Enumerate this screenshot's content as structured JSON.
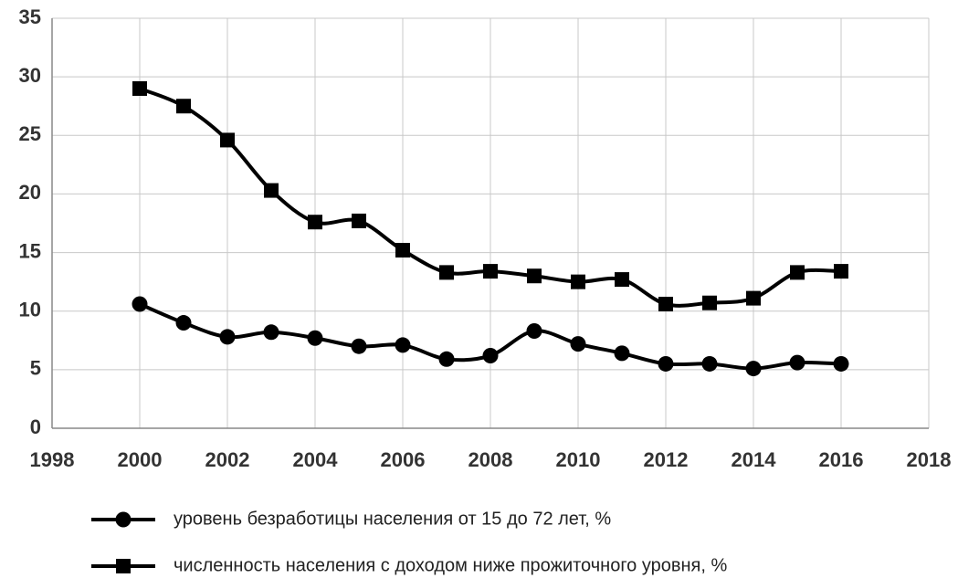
{
  "chart_data": {
    "type": "line",
    "x": [
      2000,
      2001,
      2002,
      2003,
      2004,
      2005,
      2006,
      2007,
      2008,
      2009,
      2010,
      2011,
      2012,
      2013,
      2014,
      2015,
      2016
    ],
    "series": [
      {
        "name": "уровень безработицы населения от 15 до 72 лет, %",
        "color": "#000000",
        "marker": "circle",
        "values": [
          10.6,
          9.0,
          7.8,
          8.2,
          7.7,
          7.0,
          7.1,
          5.9,
          6.2,
          8.3,
          7.2,
          6.4,
          5.5,
          5.5,
          5.1,
          5.6,
          5.5
        ]
      },
      {
        "name": "численность населения с доходом ниже прожиточного уровня, %",
        "color": "#000000",
        "marker": "square",
        "values": [
          29.0,
          27.5,
          24.6,
          20.3,
          17.6,
          17.7,
          15.2,
          13.3,
          13.4,
          13.0,
          12.5,
          12.7,
          10.6,
          10.7,
          11.1,
          13.3,
          13.4
        ]
      }
    ],
    "xlim": [
      1998,
      2018
    ],
    "xticks": [
      1998,
      2000,
      2002,
      2004,
      2006,
      2008,
      2010,
      2012,
      2014,
      2016,
      2018
    ],
    "ylim": [
      0,
      35
    ],
    "yticks": [
      0,
      5,
      10,
      15,
      20,
      25,
      30,
      35
    ],
    "grid": true,
    "legend": "bottom"
  }
}
